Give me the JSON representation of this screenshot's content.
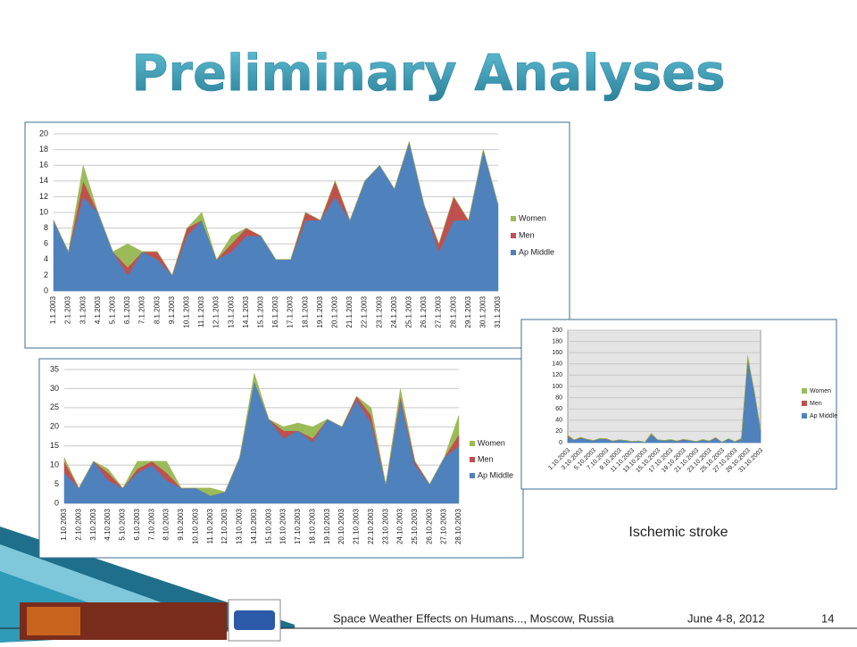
{
  "title": "Preliminary Analyses",
  "caption": "Ischemic stroke",
  "footer": {
    "text": "Space Weather Effects on Humans..., Moscow, Russia",
    "date": "June 4-8, 2012",
    "page": "14"
  },
  "chart_data": [
    {
      "type": "area",
      "stacked": true,
      "grid": true,
      "categories": [
        "1.1.2003",
        "2.1.2003",
        "3.1.2003",
        "4.1.2003",
        "5.1.2003",
        "6.1.2003",
        "7.1.2003",
        "8.1.2003",
        "9.1.2003",
        "10.1.2003",
        "11.1.2003",
        "12.1.2003",
        "13.1.2003",
        "14.1.2003",
        "15.1.2003",
        "16.1.2003",
        "17.1.2003",
        "18.1.2003",
        "19.1.2003",
        "20.1.2003",
        "21.1.2003",
        "22.1.2003",
        "23.1.2003",
        "24.1.2003",
        "25.1.2003",
        "26.1.2003",
        "27.1.2003",
        "28.1.2003",
        "29.1.2003",
        "30.1.2003",
        "31.1.2003"
      ],
      "series": [
        {
          "name": "Women",
          "color": "#9bbb59",
          "values": [
            0,
            0,
            2,
            0,
            0,
            3,
            0,
            0,
            0,
            0,
            1,
            0,
            1,
            0,
            0,
            0,
            0,
            0,
            0,
            0,
            0,
            0,
            0,
            0,
            0,
            0,
            0,
            0,
            0,
            0,
            0
          ]
        },
        {
          "name": "Men",
          "color": "#c0504d",
          "values": [
            0,
            0,
            2,
            0,
            0,
            1,
            0,
            1,
            0,
            1,
            0,
            0,
            1,
            1,
            0,
            0,
            0,
            1,
            0,
            2,
            0,
            0,
            0,
            0,
            0,
            0,
            1,
            3,
            0,
            0,
            0
          ]
        },
        {
          "name": "Ap Middle",
          "color": "#4f81bd",
          "values": [
            9,
            5,
            12,
            10,
            5,
            2,
            5,
            4,
            2,
            7,
            9,
            4,
            5,
            7,
            7,
            4,
            4,
            9,
            9,
            12,
            9,
            14,
            16,
            13,
            19,
            11,
            5,
            9,
            9,
            18,
            11
          ]
        }
      ],
      "ylim": [
        0,
        20
      ],
      "yticks": [
        0,
        2,
        4,
        6,
        8,
        10,
        12,
        14,
        16,
        18,
        20
      ]
    },
    {
      "type": "area",
      "stacked": true,
      "grid": true,
      "categories": [
        "1.10.2003",
        "2.10.2003",
        "3.10.2003",
        "4.10.2003",
        "5.10.2003",
        "6.10.2003",
        "7.10.2003",
        "8.10.2003",
        "9.10.2003",
        "10.10.2003",
        "11.10.2003",
        "12.10.2003",
        "13.10.2003",
        "14.10.2003",
        "15.10.2003",
        "16.10.2003",
        "17.10.2003",
        "18.10.2003",
        "19.10.2003",
        "20.10.2003",
        "21.10.2003",
        "22.10.2003",
        "23.10.2003",
        "24.10.2003",
        "25.10.2003",
        "26.10.2003",
        "27.10.2003",
        "28.10.2003"
      ],
      "series": [
        {
          "name": "Women",
          "color": "#9bbb59",
          "values": [
            1,
            0,
            0,
            1,
            0,
            2,
            0,
            3,
            0,
            0,
            2,
            0,
            0,
            2,
            0,
            1,
            2,
            3,
            0,
            0,
            0,
            2,
            0,
            2,
            0,
            0,
            0,
            5
          ]
        },
        {
          "name": "Men",
          "color": "#c0504d",
          "values": [
            3,
            0,
            0,
            2,
            0,
            1,
            1,
            2,
            0,
            0,
            0,
            0,
            0,
            0,
            0,
            2,
            0,
            1,
            0,
            0,
            1,
            2,
            0,
            1,
            1,
            0,
            0,
            3
          ]
        },
        {
          "name": "Ap Middle",
          "color": "#4f81bd",
          "values": [
            8,
            4,
            11,
            6,
            4,
            8,
            10,
            6,
            4,
            4,
            2,
            3,
            12,
            32,
            22,
            17,
            19,
            16,
            22,
            20,
            27,
            21,
            5,
            27,
            10,
            5,
            12,
            15
          ]
        }
      ],
      "ylim": [
        0,
        35
      ],
      "yticks": [
        0,
        5,
        10,
        15,
        20,
        25,
        30,
        35
      ]
    },
    {
      "type": "area",
      "stacked": true,
      "grid": true,
      "categories": [
        "1.10.2003",
        null,
        "3.10.2003",
        null,
        "5.10.2003",
        null,
        "7.10.2003",
        null,
        "9.10.2003",
        null,
        "11.10.2003",
        null,
        "13.10.2003",
        null,
        "15.10.2003",
        null,
        "17.10.2003",
        null,
        "19.10.2003",
        null,
        "21.10.2003",
        null,
        "23.10.2003",
        null,
        "25.10.2003",
        null,
        "27.10.2003",
        null,
        "29.10.2003",
        null,
        "31.10.2003"
      ],
      "series": [
        {
          "name": "Women",
          "color": "#9bbb59",
          "values": [
            2,
            0,
            1,
            0,
            0,
            1,
            0,
            0,
            0,
            0,
            0,
            0,
            0,
            2,
            0,
            0,
            1,
            0,
            0,
            0,
            0,
            1,
            0,
            0,
            0,
            0,
            0,
            1,
            5,
            2,
            1
          ]
        },
        {
          "name": "Men",
          "color": "#c0504d",
          "values": [
            2,
            0,
            1,
            0,
            0,
            0,
            1,
            0,
            0,
            0,
            0,
            0,
            0,
            1,
            0,
            0,
            0,
            0,
            1,
            0,
            0,
            0,
            0,
            1,
            0,
            0,
            0,
            1,
            2,
            2,
            1
          ]
        },
        {
          "name": "Ap Middle",
          "color": "#4f81bd",
          "values": [
            10,
            5,
            8,
            6,
            4,
            7,
            6,
            3,
            5,
            4,
            2,
            3,
            1,
            14,
            5,
            4,
            5,
            3,
            5,
            4,
            2,
            5,
            3,
            8,
            1,
            7,
            2,
            6,
            148,
            90,
            22
          ]
        }
      ],
      "ylim": [
        0,
        200
      ],
      "yticks": [
        0,
        20,
        40,
        60,
        80,
        100,
        120,
        140,
        160,
        180,
        200
      ]
    }
  ]
}
